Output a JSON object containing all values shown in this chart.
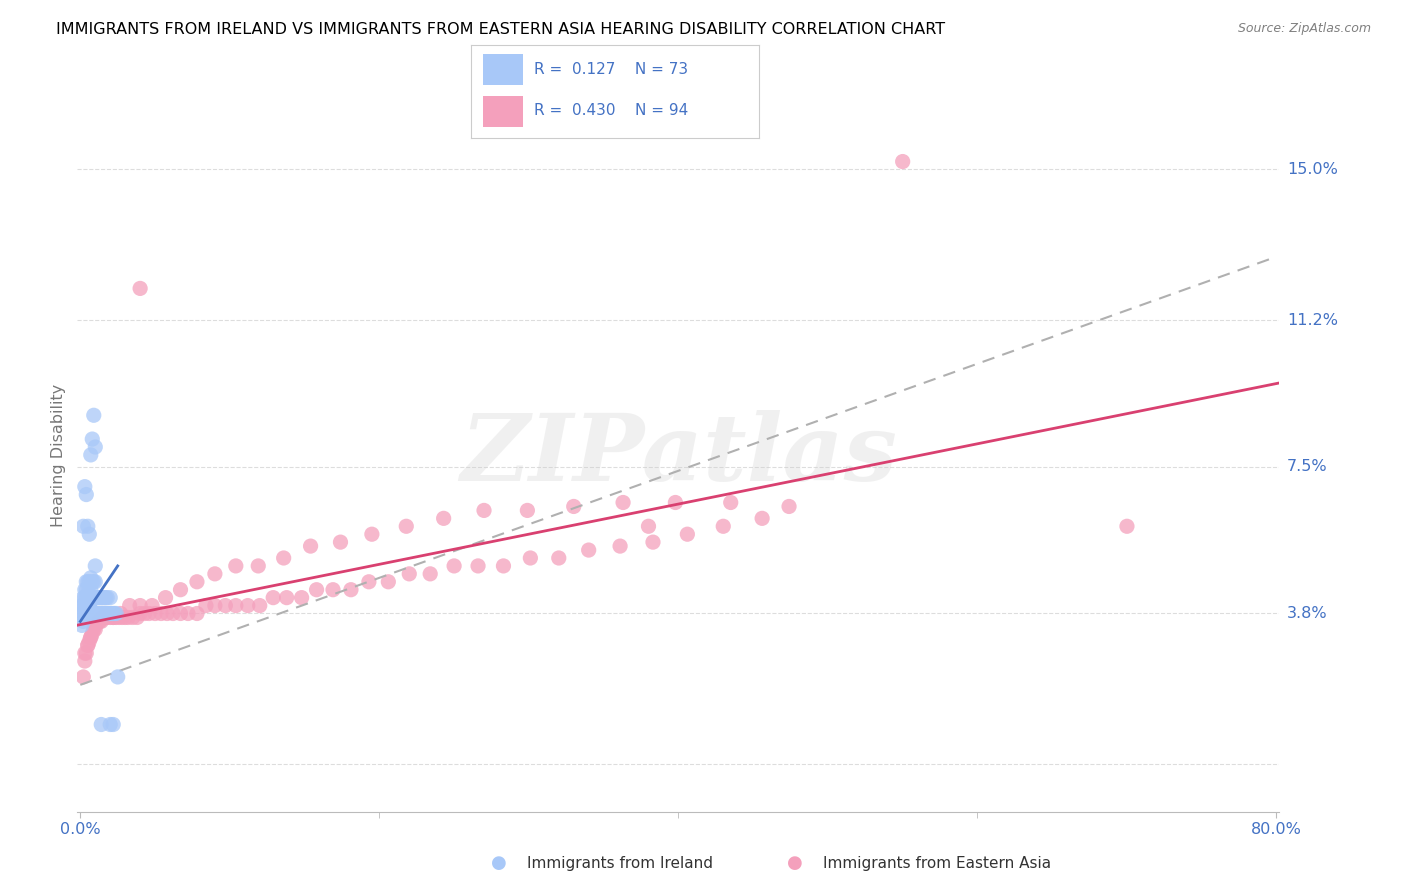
{
  "title": "IMMIGRANTS FROM IRELAND VS IMMIGRANTS FROM EASTERN ASIA HEARING DISABILITY CORRELATION CHART",
  "source": "Source: ZipAtlas.com",
  "ylabel": "Hearing Disability",
  "ytick_vals": [
    0.0,
    0.038,
    0.075,
    0.112,
    0.15
  ],
  "ytick_labels": [
    "",
    "3.8%",
    "7.5%",
    "11.2%",
    "15.0%"
  ],
  "xlim": [
    -0.002,
    0.802
  ],
  "ylim": [
    -0.012,
    0.168
  ],
  "watermark": "ZIPatlas",
  "ireland": {
    "label": "Immigrants from Ireland",
    "R": 0.127,
    "N": 73,
    "scatter_color": "#a8c8f8",
    "trend_color": "#4472c4",
    "x": [
      0.001,
      0.001,
      0.001,
      0.002,
      0.002,
      0.002,
      0.002,
      0.003,
      0.003,
      0.003,
      0.003,
      0.004,
      0.004,
      0.004,
      0.004,
      0.005,
      0.005,
      0.005,
      0.005,
      0.006,
      0.006,
      0.006,
      0.006,
      0.007,
      0.007,
      0.007,
      0.007,
      0.008,
      0.008,
      0.008,
      0.009,
      0.009,
      0.009,
      0.01,
      0.01,
      0.01,
      0.01,
      0.011,
      0.011,
      0.012,
      0.012,
      0.013,
      0.013,
      0.014,
      0.014,
      0.015,
      0.015,
      0.016,
      0.016,
      0.017,
      0.017,
      0.018,
      0.018,
      0.019,
      0.02,
      0.02,
      0.021,
      0.022,
      0.023,
      0.024,
      0.002,
      0.003,
      0.004,
      0.005,
      0.006,
      0.007,
      0.008,
      0.009,
      0.01,
      0.025,
      0.014,
      0.02,
      0.022
    ],
    "y": [
      0.035,
      0.038,
      0.04,
      0.036,
      0.038,
      0.04,
      0.042,
      0.038,
      0.04,
      0.042,
      0.044,
      0.04,
      0.042,
      0.044,
      0.046,
      0.038,
      0.041,
      0.043,
      0.046,
      0.038,
      0.04,
      0.043,
      0.046,
      0.038,
      0.041,
      0.044,
      0.047,
      0.038,
      0.042,
      0.046,
      0.038,
      0.042,
      0.046,
      0.038,
      0.042,
      0.046,
      0.05,
      0.038,
      0.042,
      0.038,
      0.042,
      0.038,
      0.042,
      0.038,
      0.042,
      0.038,
      0.042,
      0.038,
      0.042,
      0.038,
      0.042,
      0.038,
      0.042,
      0.038,
      0.038,
      0.042,
      0.038,
      0.038,
      0.038,
      0.038,
      0.06,
      0.07,
      0.068,
      0.06,
      0.058,
      0.078,
      0.082,
      0.088,
      0.08,
      0.022,
      0.01,
      0.01,
      0.01
    ]
  },
  "asia": {
    "label": "Immigrants from Eastern Asia",
    "R": 0.43,
    "N": 94,
    "scatter_color": "#f4a0bc",
    "trend_color": "#d94070",
    "x": [
      0.002,
      0.003,
      0.004,
      0.005,
      0.006,
      0.007,
      0.008,
      0.009,
      0.01,
      0.012,
      0.014,
      0.015,
      0.016,
      0.018,
      0.02,
      0.022,
      0.024,
      0.026,
      0.028,
      0.03,
      0.032,
      0.035,
      0.038,
      0.04,
      0.043,
      0.046,
      0.05,
      0.054,
      0.058,
      0.062,
      0.067,
      0.072,
      0.078,
      0.084,
      0.09,
      0.097,
      0.104,
      0.112,
      0.12,
      0.129,
      0.138,
      0.148,
      0.158,
      0.169,
      0.181,
      0.193,
      0.206,
      0.22,
      0.234,
      0.25,
      0.266,
      0.283,
      0.301,
      0.32,
      0.34,
      0.361,
      0.383,
      0.406,
      0.43,
      0.456,
      0.003,
      0.005,
      0.007,
      0.01,
      0.013,
      0.017,
      0.022,
      0.027,
      0.033,
      0.04,
      0.048,
      0.057,
      0.067,
      0.078,
      0.09,
      0.104,
      0.119,
      0.136,
      0.154,
      0.174,
      0.195,
      0.218,
      0.243,
      0.27,
      0.299,
      0.33,
      0.363,
      0.398,
      0.435,
      0.474,
      0.55,
      0.7,
      0.38,
      0.04
    ],
    "y": [
      0.022,
      0.026,
      0.028,
      0.03,
      0.031,
      0.032,
      0.033,
      0.034,
      0.035,
      0.036,
      0.036,
      0.037,
      0.037,
      0.037,
      0.037,
      0.037,
      0.037,
      0.037,
      0.037,
      0.037,
      0.037,
      0.037,
      0.037,
      0.038,
      0.038,
      0.038,
      0.038,
      0.038,
      0.038,
      0.038,
      0.038,
      0.038,
      0.038,
      0.04,
      0.04,
      0.04,
      0.04,
      0.04,
      0.04,
      0.042,
      0.042,
      0.042,
      0.044,
      0.044,
      0.044,
      0.046,
      0.046,
      0.048,
      0.048,
      0.05,
      0.05,
      0.05,
      0.052,
      0.052,
      0.054,
      0.055,
      0.056,
      0.058,
      0.06,
      0.062,
      0.028,
      0.03,
      0.032,
      0.034,
      0.036,
      0.037,
      0.037,
      0.038,
      0.04,
      0.04,
      0.04,
      0.042,
      0.044,
      0.046,
      0.048,
      0.05,
      0.05,
      0.052,
      0.055,
      0.056,
      0.058,
      0.06,
      0.062,
      0.064,
      0.064,
      0.065,
      0.066,
      0.066,
      0.066,
      0.065,
      0.152,
      0.06,
      0.06,
      0.12
    ]
  },
  "dashed_line": {
    "color": "#b0b0b0",
    "x": [
      0.0,
      0.8
    ],
    "y": [
      0.02,
      0.128
    ]
  },
  "ireland_trend_x": [
    0.0,
    0.025
  ],
  "ireland_trend_y": [
    0.036,
    0.05
  ],
  "background_color": "#ffffff",
  "grid_color": "#dddddd",
  "title_fontsize": 11.5,
  "tick_color": "#4472c4",
  "ylabel_color": "#777777",
  "legend_text_color": "#4472c4"
}
